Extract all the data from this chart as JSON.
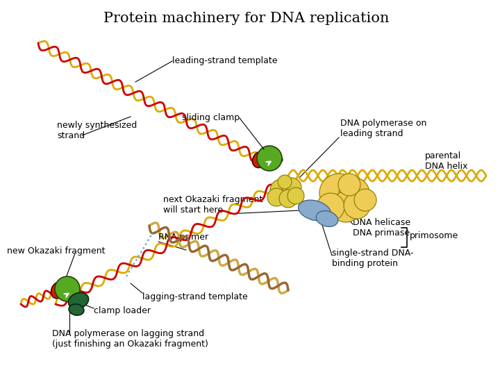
{
  "title": "Protein machinery for DNA replication",
  "title_fontsize": 15,
  "background_color": "#ffffff",
  "labels": {
    "leading_strand_template": "leading-strand template",
    "sliding_clamp": "sliding clamp",
    "dna_pol_leading": "DNA polymerase on\nleading strand",
    "newly_synthesized": "newly synthesized\nstrand",
    "parental_dna": "parental\nDNA helix",
    "next_okazaki": "next Okazaki fragment\nwill start here",
    "rna_primer": "RNA primer",
    "new_okazaki": "new Okazaki fragment",
    "lagging_template": "lagging-strand template",
    "dna_helicase": "DNA helicase\nDNA primase",
    "primosome": "primosome",
    "ssdna_binding": "single-strand DNA-\nbinding protein",
    "clamp_loader": "clamp loader",
    "dna_pol_lagging": "DNA polymerase on lagging strand\n(just finishing an Okazaki fragment)"
  },
  "colors": {
    "dna_red": "#cc0000",
    "dna_gold": "#ddaa00",
    "sliding_clamp_green": "#55aa22",
    "sliding_clamp_red": "#cc2200",
    "dna_pol_yellow": "#ddcc44",
    "helicase_yellow": "#eecc55",
    "rna_primer_brown": "#996633",
    "rna_primer_gold": "#ccaa44",
    "ssdna_blue": "#88aacc",
    "clamp_loader_green": "#226633",
    "dotted_blue": "#66aadd"
  }
}
